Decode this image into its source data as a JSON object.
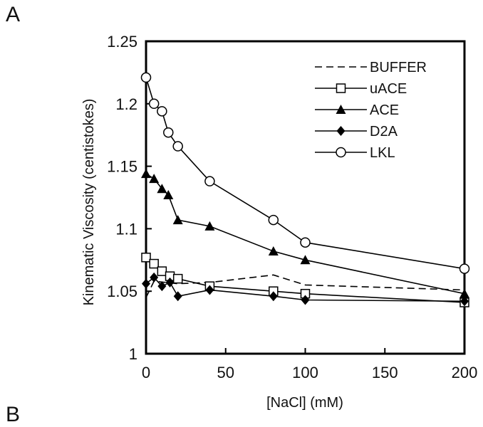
{
  "panel_labels": {
    "top": "A",
    "bottom": "B"
  },
  "chart_data": {
    "type": "line",
    "title": "",
    "xlabel": "[NaCl] (mM)",
    "ylabel": "Kinematic Viscosity (centistokes)",
    "xlim": [
      0,
      200
    ],
    "ylim": [
      1,
      1.25
    ],
    "x_ticks": [
      0,
      50,
      100,
      150,
      200
    ],
    "y_ticks": [
      1,
      1.05,
      1.1,
      1.15,
      1.2,
      1.25
    ],
    "y_tick_labels": [
      "1",
      "1.05",
      "1.1",
      "1.15",
      "1.2",
      "1.25"
    ],
    "grid": false,
    "legend_position": "top-right",
    "series": [
      {
        "name": "BUFFER",
        "marker": "none",
        "dash": true,
        "x": [
          0,
          5,
          20,
          40,
          80,
          100,
          200
        ],
        "y": [
          1.045,
          1.058,
          1.056,
          1.057,
          1.063,
          1.055,
          1.051
        ]
      },
      {
        "name": "uACE",
        "marker": "square-open",
        "dash": false,
        "x": [
          0,
          5,
          10,
          15,
          20,
          40,
          80,
          100,
          200
        ],
        "y": [
          1.077,
          1.072,
          1.066,
          1.062,
          1.06,
          1.054,
          1.05,
          1.048,
          1.041
        ]
      },
      {
        "name": "ACE",
        "marker": "triangle-filled",
        "dash": false,
        "x": [
          0,
          5,
          10,
          14,
          20,
          40,
          80,
          100,
          200
        ],
        "y": [
          1.144,
          1.14,
          1.132,
          1.127,
          1.107,
          1.102,
          1.082,
          1.075,
          1.048
        ]
      },
      {
        "name": "D2A",
        "marker": "diamond-filled",
        "dash": false,
        "x": [
          0,
          5,
          10,
          15,
          20,
          40,
          80,
          100,
          200
        ],
        "y": [
          1.056,
          1.061,
          1.054,
          1.057,
          1.046,
          1.051,
          1.046,
          1.043,
          1.042
        ]
      },
      {
        "name": "LKL",
        "marker": "circle-open",
        "dash": false,
        "x": [
          0,
          5,
          10,
          14,
          20,
          40,
          80,
          100,
          200
        ],
        "y": [
          1.221,
          1.2,
          1.194,
          1.177,
          1.166,
          1.138,
          1.107,
          1.089,
          1.068
        ]
      }
    ]
  }
}
